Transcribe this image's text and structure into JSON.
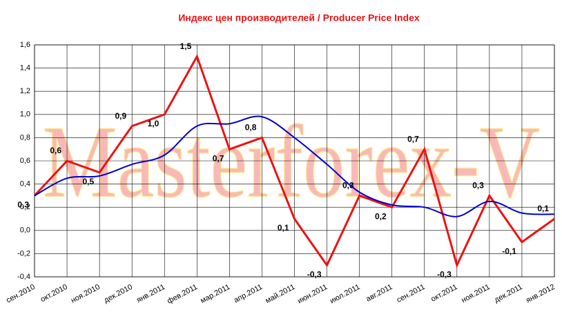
{
  "chart_data": {
    "type": "line",
    "title": "Индекс цен производителей / Producer Price Index",
    "watermark": "Masterforex-V",
    "categories": [
      "сен.2010",
      "окт.2010",
      "ноя.2010",
      "дек.2010",
      "янв.2011",
      "фев.2011",
      "мар.2011",
      "апр.2011",
      "май.2011",
      "июн.2011",
      "июл.2011",
      "авг.2011",
      "сен.2011",
      "окт.2011",
      "ноя.2011",
      "дек.2011",
      "янв.2012"
    ],
    "series": [
      {
        "color": "#ee1111",
        "values": [
          0.3,
          0.6,
          0.5,
          0.9,
          1.0,
          1.5,
          0.7,
          0.8,
          0.1,
          -0.3,
          0.3,
          0.2,
          0.7,
          -0.3,
          0.3,
          -0.1,
          0.1
        ],
        "value_labels": [
          "0,3",
          "0,6",
          "0,5",
          "0,9",
          "1,0",
          "1,5",
          "0,7",
          "0,8",
          "0,1",
          "-0,3",
          "0,3",
          "0,2",
          "0,7",
          "-0,3",
          "0,3",
          "-0,1",
          "0,1"
        ]
      },
      {
        "color": "#0000cc",
        "values": [
          0.3,
          0.45,
          0.47,
          0.57,
          0.65,
          0.9,
          0.92,
          0.98,
          0.8,
          0.57,
          0.33,
          0.22,
          0.2,
          0.12,
          0.25,
          0.15,
          0.14
        ]
      }
    ],
    "ylim": [
      -0.4,
      1.6
    ],
    "yticks": [
      {
        "value": -0.4,
        "label": "-0,4"
      },
      {
        "value": -0.2,
        "label": "-0,2"
      },
      {
        "value": 0,
        "label": "0,0"
      },
      {
        "value": 0.2,
        "label": "0,2"
      },
      {
        "value": 0.4,
        "label": "0,4"
      },
      {
        "value": 0.6,
        "label": "0,6"
      },
      {
        "value": 0.8,
        "label": "0,8"
      },
      {
        "value": 1.0,
        "label": "1,0"
      },
      {
        "value": 1.2,
        "label": "1,2"
      },
      {
        "value": 1.4,
        "label": "1,4"
      },
      {
        "value": 1.6,
        "label": "1,6"
      }
    ],
    "grid": true
  }
}
